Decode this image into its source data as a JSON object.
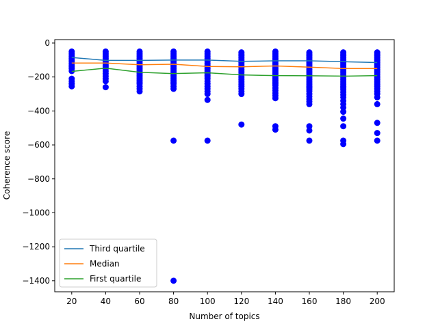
{
  "chart_data": {
    "type": "scatter",
    "xlabel": "Number of topics",
    "ylabel": "Coherence score",
    "xlim": [
      10,
      210
    ],
    "ylim": [
      -1465,
      20
    ],
    "x_ticks": [
      20,
      40,
      60,
      80,
      100,
      120,
      140,
      160,
      180,
      200
    ],
    "y_ticks": [
      0,
      -200,
      -400,
      -600,
      -800,
      -1000,
      -1200,
      -1400
    ],
    "grid": false,
    "legend_position": "lower-left",
    "scatter": {
      "color": "#0000ff",
      "points": [
        [
          20,
          -50
        ],
        [
          20,
          -60
        ],
        [
          20,
          -70
        ],
        [
          20,
          -80
        ],
        [
          20,
          -90
        ],
        [
          20,
          -100
        ],
        [
          20,
          -110
        ],
        [
          20,
          -120
        ],
        [
          20,
          -130
        ],
        [
          20,
          -140
        ],
        [
          20,
          -150
        ],
        [
          20,
          -165
        ],
        [
          20,
          -210
        ],
        [
          20,
          -225
        ],
        [
          20,
          -240
        ],
        [
          20,
          -255
        ],
        [
          40,
          -50
        ],
        [
          40,
          -60
        ],
        [
          40,
          -70
        ],
        [
          40,
          -80
        ],
        [
          40,
          -90
        ],
        [
          40,
          -100
        ],
        [
          40,
          -110
        ],
        [
          40,
          -120
        ],
        [
          40,
          -130
        ],
        [
          40,
          -140
        ],
        [
          40,
          -150
        ],
        [
          40,
          -165
        ],
        [
          40,
          -180
        ],
        [
          40,
          -195
        ],
        [
          40,
          -210
        ],
        [
          40,
          -225
        ],
        [
          40,
          -260
        ],
        [
          60,
          -50
        ],
        [
          60,
          -60
        ],
        [
          60,
          -70
        ],
        [
          60,
          -80
        ],
        [
          60,
          -90
        ],
        [
          60,
          -100
        ],
        [
          60,
          -110
        ],
        [
          60,
          -120
        ],
        [
          60,
          -130
        ],
        [
          60,
          -140
        ],
        [
          60,
          -150
        ],
        [
          60,
          -160
        ],
        [
          60,
          -170
        ],
        [
          60,
          -180
        ],
        [
          60,
          -190
        ],
        [
          60,
          -200
        ],
        [
          60,
          -210
        ],
        [
          60,
          -220
        ],
        [
          60,
          -230
        ],
        [
          60,
          -240
        ],
        [
          60,
          -255
        ],
        [
          60,
          -270
        ],
        [
          60,
          -285
        ],
        [
          80,
          -50
        ],
        [
          80,
          -60
        ],
        [
          80,
          -70
        ],
        [
          80,
          -80
        ],
        [
          80,
          -90
        ],
        [
          80,
          -100
        ],
        [
          80,
          -110
        ],
        [
          80,
          -120
        ],
        [
          80,
          -130
        ],
        [
          80,
          -140
        ],
        [
          80,
          -150
        ],
        [
          80,
          -160
        ],
        [
          80,
          -170
        ],
        [
          80,
          -180
        ],
        [
          80,
          -190
        ],
        [
          80,
          -200
        ],
        [
          80,
          -210
        ],
        [
          80,
          -220
        ],
        [
          80,
          -230
        ],
        [
          80,
          -240
        ],
        [
          80,
          -255
        ],
        [
          80,
          -270
        ],
        [
          80,
          -575
        ],
        [
          80,
          -1400
        ],
        [
          100,
          -50
        ],
        [
          100,
          -60
        ],
        [
          100,
          -70
        ],
        [
          100,
          -80
        ],
        [
          100,
          -90
        ],
        [
          100,
          -100
        ],
        [
          100,
          -110
        ],
        [
          100,
          -120
        ],
        [
          100,
          -130
        ],
        [
          100,
          -140
        ],
        [
          100,
          -150
        ],
        [
          100,
          -160
        ],
        [
          100,
          -170
        ],
        [
          100,
          -180
        ],
        [
          100,
          -190
        ],
        [
          100,
          -200
        ],
        [
          100,
          -210
        ],
        [
          100,
          -225
        ],
        [
          100,
          -240
        ],
        [
          100,
          -255
        ],
        [
          100,
          -270
        ],
        [
          100,
          -285
        ],
        [
          100,
          -300
        ],
        [
          100,
          -335
        ],
        [
          100,
          -575
        ],
        [
          120,
          -55
        ],
        [
          120,
          -65
        ],
        [
          120,
          -75
        ],
        [
          120,
          -85
        ],
        [
          120,
          -95
        ],
        [
          120,
          -105
        ],
        [
          120,
          -115
        ],
        [
          120,
          -125
        ],
        [
          120,
          -135
        ],
        [
          120,
          -145
        ],
        [
          120,
          -155
        ],
        [
          120,
          -165
        ],
        [
          120,
          -175
        ],
        [
          120,
          -185
        ],
        [
          120,
          -195
        ],
        [
          120,
          -205
        ],
        [
          120,
          -215
        ],
        [
          120,
          -225
        ],
        [
          120,
          -235
        ],
        [
          120,
          -245
        ],
        [
          120,
          -255
        ],
        [
          120,
          -270
        ],
        [
          120,
          -285
        ],
        [
          120,
          -300
        ],
        [
          120,
          -480
        ],
        [
          140,
          -50
        ],
        [
          140,
          -60
        ],
        [
          140,
          -70
        ],
        [
          140,
          -80
        ],
        [
          140,
          -90
        ],
        [
          140,
          -100
        ],
        [
          140,
          -110
        ],
        [
          140,
          -120
        ],
        [
          140,
          -130
        ],
        [
          140,
          -140
        ],
        [
          140,
          -150
        ],
        [
          140,
          -160
        ],
        [
          140,
          -170
        ],
        [
          140,
          -180
        ],
        [
          140,
          -190
        ],
        [
          140,
          -200
        ],
        [
          140,
          -210
        ],
        [
          140,
          -220
        ],
        [
          140,
          -230
        ],
        [
          140,
          -240
        ],
        [
          140,
          -250
        ],
        [
          140,
          -265
        ],
        [
          140,
          -280
        ],
        [
          140,
          -295
        ],
        [
          140,
          -310
        ],
        [
          140,
          -325
        ],
        [
          140,
          -490
        ],
        [
          140,
          -510
        ],
        [
          160,
          -55
        ],
        [
          160,
          -65
        ],
        [
          160,
          -75
        ],
        [
          160,
          -85
        ],
        [
          160,
          -95
        ],
        [
          160,
          -105
        ],
        [
          160,
          -115
        ],
        [
          160,
          -125
        ],
        [
          160,
          -135
        ],
        [
          160,
          -145
        ],
        [
          160,
          -155
        ],
        [
          160,
          -165
        ],
        [
          160,
          -175
        ],
        [
          160,
          -185
        ],
        [
          160,
          -195
        ],
        [
          160,
          -205
        ],
        [
          160,
          -215
        ],
        [
          160,
          -225
        ],
        [
          160,
          -235
        ],
        [
          160,
          -245
        ],
        [
          160,
          -255
        ],
        [
          160,
          -265
        ],
        [
          160,
          -275
        ],
        [
          160,
          -285
        ],
        [
          160,
          -300
        ],
        [
          160,
          -315
        ],
        [
          160,
          -330
        ],
        [
          160,
          -345
        ],
        [
          160,
          -360
        ],
        [
          160,
          -490
        ],
        [
          160,
          -515
        ],
        [
          160,
          -575
        ],
        [
          180,
          -55
        ],
        [
          180,
          -65
        ],
        [
          180,
          -75
        ],
        [
          180,
          -85
        ],
        [
          180,
          -95
        ],
        [
          180,
          -105
        ],
        [
          180,
          -115
        ],
        [
          180,
          -125
        ],
        [
          180,
          -135
        ],
        [
          180,
          -145
        ],
        [
          180,
          -155
        ],
        [
          180,
          -165
        ],
        [
          180,
          -175
        ],
        [
          180,
          -185
        ],
        [
          180,
          -195
        ],
        [
          180,
          -205
        ],
        [
          180,
          -215
        ],
        [
          180,
          -225
        ],
        [
          180,
          -235
        ],
        [
          180,
          -245
        ],
        [
          180,
          -255
        ],
        [
          180,
          -265
        ],
        [
          180,
          -275
        ],
        [
          180,
          -290
        ],
        [
          180,
          -305
        ],
        [
          180,
          -320
        ],
        [
          180,
          -340
        ],
        [
          180,
          -360
        ],
        [
          180,
          -380
        ],
        [
          180,
          -405
        ],
        [
          180,
          -445
        ],
        [
          180,
          -490
        ],
        [
          180,
          -575
        ],
        [
          180,
          -595
        ],
        [
          200,
          -55
        ],
        [
          200,
          -65
        ],
        [
          200,
          -75
        ],
        [
          200,
          -85
        ],
        [
          200,
          -95
        ],
        [
          200,
          -105
        ],
        [
          200,
          -115
        ],
        [
          200,
          -125
        ],
        [
          200,
          -135
        ],
        [
          200,
          -145
        ],
        [
          200,
          -155
        ],
        [
          200,
          -165
        ],
        [
          200,
          -175
        ],
        [
          200,
          -185
        ],
        [
          200,
          -195
        ],
        [
          200,
          -205
        ],
        [
          200,
          -215
        ],
        [
          200,
          -225
        ],
        [
          200,
          -235
        ],
        [
          200,
          -245
        ],
        [
          200,
          -255
        ],
        [
          200,
          -270
        ],
        [
          200,
          -285
        ],
        [
          200,
          -300
        ],
        [
          200,
          -320
        ],
        [
          200,
          -360
        ],
        [
          200,
          -470
        ],
        [
          200,
          -530
        ],
        [
          200,
          -575
        ]
      ]
    },
    "series": [
      {
        "name": "Third quartile",
        "color": "#1f77b4",
        "x": [
          20,
          40,
          60,
          80,
          100,
          120,
          140,
          160,
          180,
          200
        ],
        "values": [
          -85,
          -102,
          -102,
          -100,
          -100,
          -108,
          -105,
          -105,
          -110,
          -115
        ]
      },
      {
        "name": "Median",
        "color": "#ff7f0e",
        "x": [
          20,
          40,
          60,
          80,
          100,
          120,
          140,
          160,
          180,
          200
        ],
        "values": [
          -118,
          -118,
          -128,
          -125,
          -138,
          -140,
          -135,
          -142,
          -150,
          -150
        ]
      },
      {
        "name": "First quartile",
        "color": "#2ca02c",
        "x": [
          20,
          40,
          60,
          80,
          100,
          120,
          140,
          160,
          180,
          200
        ],
        "values": [
          -167,
          -148,
          -172,
          -180,
          -175,
          -188,
          -192,
          -193,
          -195,
          -192
        ]
      }
    ]
  }
}
